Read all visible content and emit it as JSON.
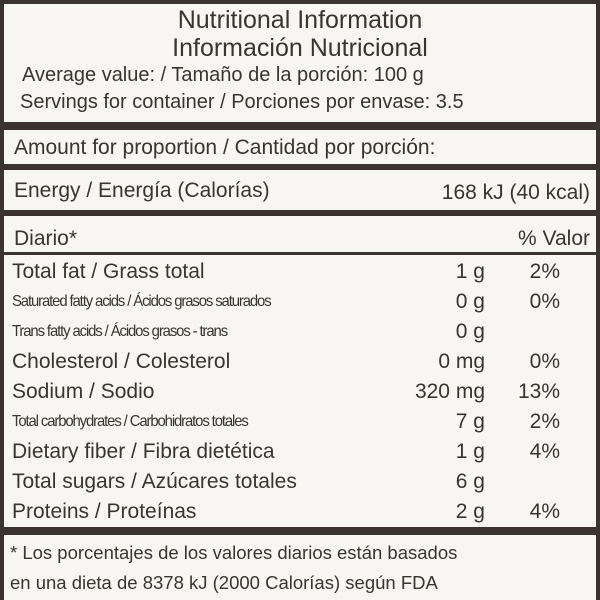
{
  "header": {
    "title_en": "Nutritional Information",
    "title_es": "Información Nutricional",
    "serving_size": "Average value: / Tamaño de la porción: 100 g",
    "servings": "Servings for container / Porciones por envase: 3.5"
  },
  "amount_header": "Amount for proportion / Cantidad por porción:",
  "energy": {
    "label": "Energy / Energía (Calorías)",
    "value": "168 kJ (40 kcal)"
  },
  "daily_header": {
    "left": "Diario*",
    "right": "% Valor"
  },
  "nutrients": [
    {
      "name": "Total fat / Grass total",
      "amount": "1 g",
      "dv": "2%"
    },
    {
      "name": "Saturated fatty acids / Ácidos grasos saturados",
      "amount": "0 g",
      "dv": "0%"
    },
    {
      "name": "Trans fatty acids / Ácidos grasos - trans",
      "amount": "0 g",
      "dv": ""
    },
    {
      "name": "Cholesterol / Colesterol",
      "amount": "0 mg",
      "dv": "0%"
    },
    {
      "name": "Sodium / Sodio",
      "amount": "320 mg",
      "dv": "13%"
    },
    {
      "name": "Total carbohydrates / Carbohidratos totales",
      "amount": "7 g",
      "dv": "2%"
    },
    {
      "name": "Dietary fiber / Fibra dietética",
      "amount": "1 g",
      "dv": "4%"
    },
    {
      "name": "Total sugars / Azúcares totales",
      "amount": "6 g",
      "dv": ""
    },
    {
      "name": "Proteins / Proteínas",
      "amount": "2 g",
      "dv": "4%"
    }
  ],
  "footnote": {
    "line1": "*  Los porcentajes de los valores diarios están basados",
    "line2": "en una dieta de 8378 kJ (2000 Calorías) según FDA"
  }
}
